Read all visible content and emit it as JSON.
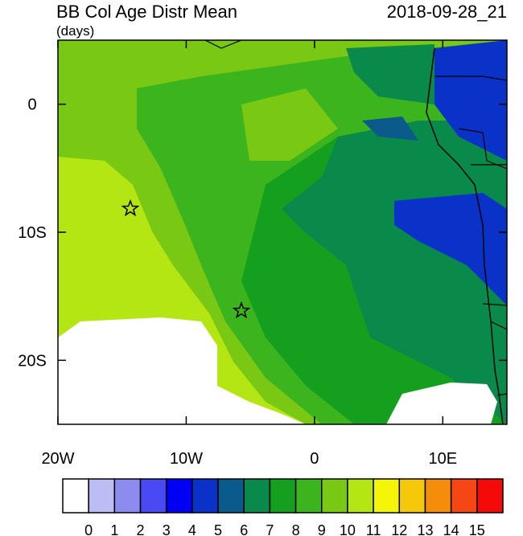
{
  "title": "BB Col Age Distr Mean",
  "date": "2018-09-28_21",
  "units": "(days)",
  "map": {
    "xlim": [
      -20,
      15
    ],
    "ylim": [
      -25,
      5
    ],
    "xticks": [
      {
        "value": -20,
        "label": "20W"
      },
      {
        "value": -10,
        "label": "10W"
      },
      0,
      {
        "value": 10,
        "label": "10E"
      }
    ],
    "yticks": [
      0,
      {
        "value": -10,
        "label": "10S"
      },
      {
        "value": -20,
        "label": "20S"
      }
    ]
  },
  "colorbar": {
    "levels": [
      0,
      1,
      2,
      3,
      4,
      5,
      6,
      7,
      8,
      9,
      10,
      11,
      12,
      13,
      14,
      15
    ],
    "colors": [
      "#ffffff",
      "#bdbdf5",
      "#8c8cf0",
      "#4a4af5",
      "#0000f5",
      "#0a32c8",
      "#0a5a8c",
      "#0a8a4a",
      "#14a01e",
      "#3cb41e",
      "#78c814",
      "#b4e614",
      "#f5f50a",
      "#f5c80a",
      "#f58c0a",
      "#f54614",
      "#f50a0a"
    ]
  }
}
